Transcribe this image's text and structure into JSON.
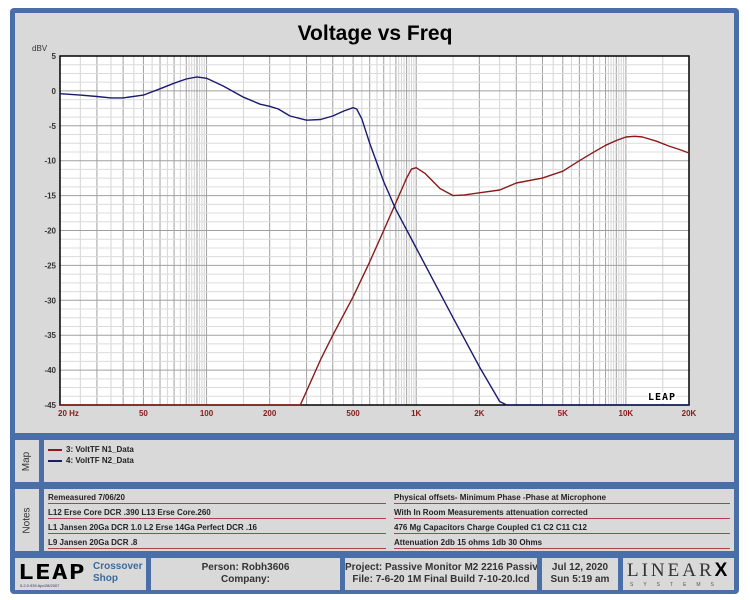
{
  "chart_title": "Voltage vs Freq",
  "chart_data": {
    "type": "line",
    "title": "Voltage vs Freq",
    "xlabel": "Hz",
    "ylabel": "dBV",
    "x_scale": "log",
    "xlim": [
      20,
      20000
    ],
    "ylim": [
      -45,
      5
    ],
    "x_ticks": [
      "20 Hz",
      "50",
      "100",
      "200",
      "500",
      "1K",
      "2K",
      "5K",
      "10K",
      "20K"
    ],
    "x_tick_values": [
      20,
      50,
      100,
      200,
      500,
      1000,
      2000,
      5000,
      10000,
      20000
    ],
    "y_ticks": [
      5,
      0,
      -5,
      -10,
      -15,
      -20,
      -25,
      -30,
      -35,
      -40,
      -45
    ],
    "grid": true,
    "legend_position": "below (Map panel)",
    "series": [
      {
        "name": "3: VoltTF N1_Data",
        "color": "#8b1a1a",
        "x": [
          20,
          100,
          200,
          280,
          300,
          350,
          400,
          500,
          600,
          700,
          800,
          900,
          950,
          1000,
          1100,
          1300,
          1500,
          1700,
          2000,
          2500,
          3000,
          4000,
          5000,
          6000,
          7000,
          8000,
          9000,
          10000,
          11000,
          12000,
          14000,
          16000,
          18000,
          20000
        ],
        "values": [
          -45,
          -45,
          -45,
          -45,
          -43,
          -38.5,
          -35,
          -29.5,
          -24.5,
          -20,
          -16,
          -12.5,
          -11.2,
          -11,
          -11.8,
          -14,
          -15,
          -14.9,
          -14.6,
          -14.2,
          -13.2,
          -12.5,
          -11.5,
          -10,
          -8.8,
          -7.8,
          -7.1,
          -6.6,
          -6.5,
          -6.6,
          -7.2,
          -7.9,
          -8.4,
          -8.9
        ]
      },
      {
        "name": "4: VoltTF N2_Data",
        "color": "#1a1a6e",
        "x": [
          20,
          25,
          30,
          35,
          40,
          50,
          60,
          70,
          80,
          90,
          100,
          120,
          150,
          180,
          200,
          220,
          250,
          300,
          350,
          400,
          450,
          500,
          520,
          550,
          600,
          700,
          800,
          1000,
          1200,
          1500,
          2000,
          2500,
          2700,
          20000
        ],
        "values": [
          -0.4,
          -0.6,
          -0.8,
          -1.0,
          -1.0,
          -0.6,
          0.3,
          1.1,
          1.7,
          2.0,
          1.8,
          0.7,
          -0.9,
          -1.9,
          -2.2,
          -2.6,
          -3.6,
          -4.2,
          -4.1,
          -3.6,
          -2.9,
          -2.4,
          -2.6,
          -4,
          -7.5,
          -13,
          -17,
          -22.5,
          -27,
          -32.5,
          -39.5,
          -44.5,
          -45,
          -45
        ]
      }
    ]
  },
  "map": {
    "label": "Map",
    "legend": [
      {
        "label": "3: VoltTF N1_Data",
        "color": "#8b1a1a"
      },
      {
        "label": "4: VoltTF N2_Data",
        "color": "#1a1a6e"
      }
    ]
  },
  "notes": {
    "label": "Notes",
    "left": [
      "Remeasured 7/06/20",
      "L12 Erse Core  DCR .390 L13 Erse Core.260",
      "L1 Jansen 20Ga DCR 1.0  L2 Erse 14Ga Perfect DCR .16",
      "L9 Jansen 20Ga DCR .8"
    ],
    "right": [
      "Physical offsets- Minimum Phase -Phase at Microphone",
      "With In Room Measurements attenuation corrected",
      "476 Mg Capacitors Charge Coupled C1 C2 C11 C12",
      "Attenuation 2db 15 ohms 1db 30 Ohms"
    ]
  },
  "footer": {
    "logo": "LEAP",
    "version": "5.2.0.939  Apr/28/2007",
    "product_line1": "Crossover",
    "product_line2": "Shop",
    "person": "Person: Robh3606",
    "company": "Company:",
    "project": "Project: Passive Monitor M2 2216 Passive",
    "file": "File: 7-6-20 1M Final Build 7-10-20.lcd",
    "date": "Jul 12, 2020",
    "time": "Sun  5:19 am",
    "brand": "LINEAR",
    "brand_x": "X",
    "brand_sub": "SYSTEMS"
  },
  "plot_watermark": "LEAP",
  "colors": {
    "frame": "#4a6ea8",
    "panel": "#d9d9d9",
    "axis_label": "#8b1a1a"
  }
}
